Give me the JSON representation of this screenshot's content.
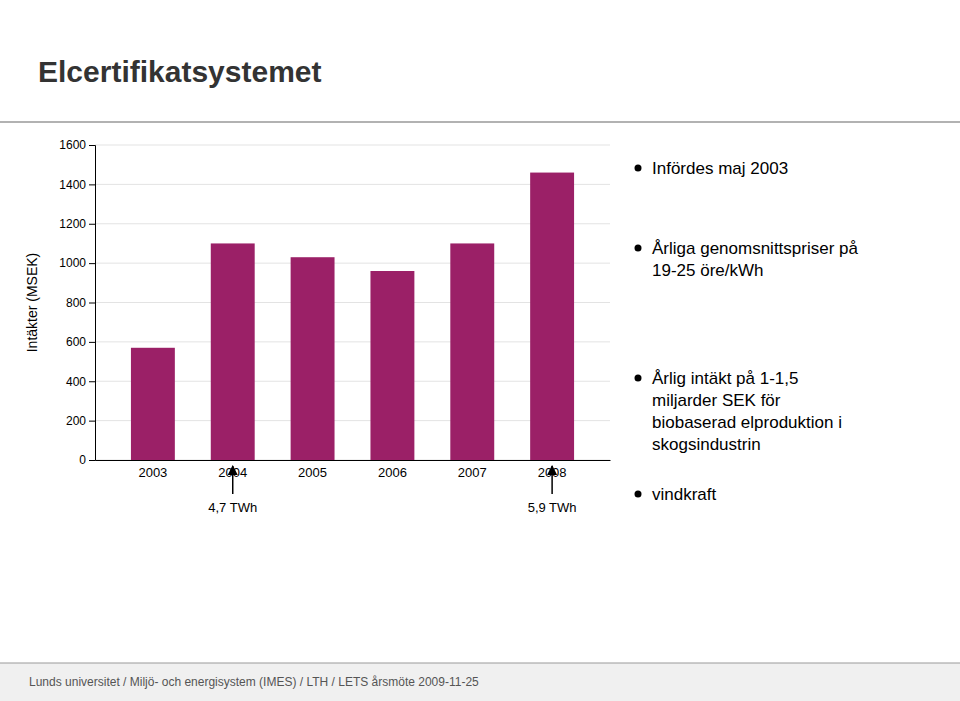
{
  "chart_data": {
    "type": "bar",
    "title": "Elcertifikatsystemet",
    "categories": [
      "2003",
      "2004",
      "2005",
      "2006",
      "2007",
      "2008"
    ],
    "values": [
      570,
      1100,
      1030,
      960,
      1100,
      1460
    ],
    "color": "#9B2067",
    "y_label": "Intäkter (MSEK)",
    "ylim": [
      0,
      1600
    ],
    "yticks": [
      0,
      200,
      400,
      600,
      800,
      1000,
      1200,
      1400,
      1600
    ],
    "grid": true,
    "annotations": [
      {
        "text": "4,7 TWh",
        "x": "2004"
      },
      {
        "text": "5,9 TWh",
        "x": "2008"
      }
    ],
    "notes": [
      "Infördes maj 2003",
      "Årliga genomsnittspriser på\n19-25 öre/kWh",
      "Årlig intäkt på 1-1,5\nmiljarder SEK för\nbiobaserad elproduktion i\nskogsindustrin",
      "vindkraft"
    ],
    "footer": "Lunds universitet / Miljö-  och energisystem (IMES) / LTH / LETS årsmöte  2009-11-25"
  }
}
